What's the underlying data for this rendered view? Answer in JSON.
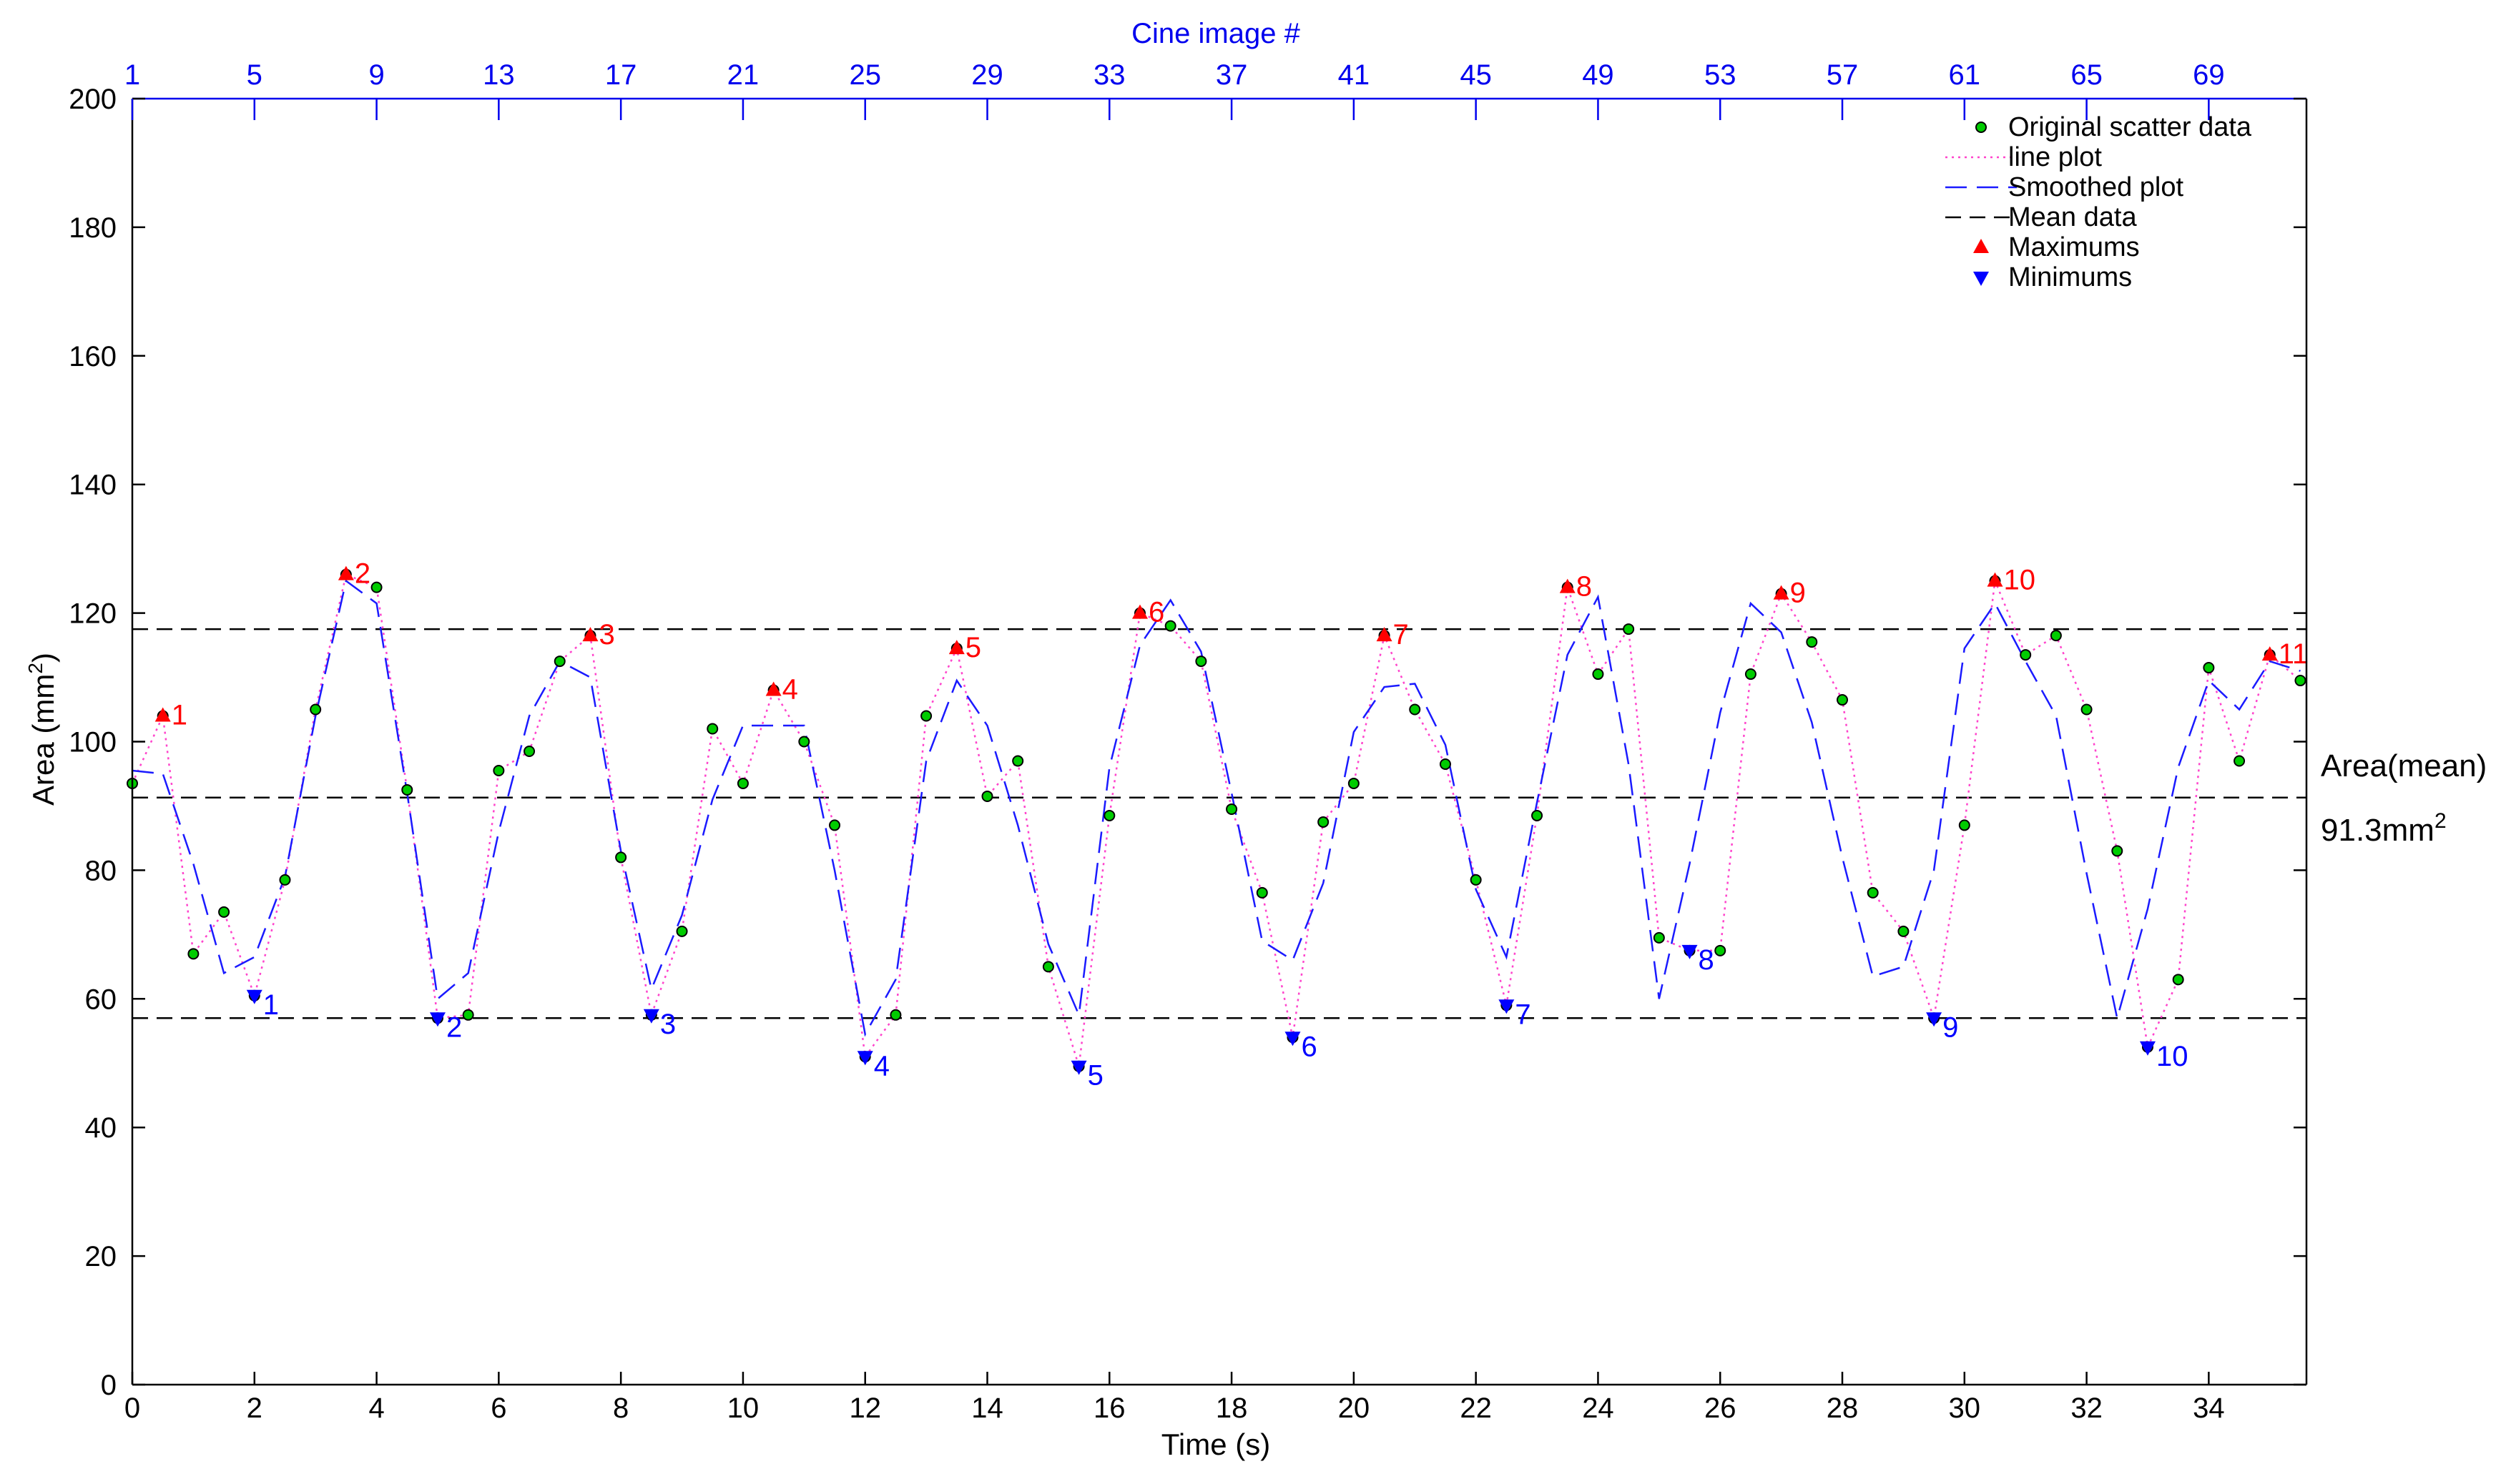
{
  "chart_data": {
    "type": "line",
    "top_axis_title": "Cine image #",
    "top_tick_labels": [
      "1",
      "5",
      "9",
      "13",
      "17",
      "21",
      "25",
      "29",
      "33",
      "37",
      "41",
      "45",
      "49",
      "53",
      "57",
      "61",
      "65",
      "69"
    ],
    "xlabel": "Time (s)",
    "ylabel_main": "Area (mm",
    "ylabel_sup": "2",
    "ylabel_close": ")",
    "xlim": [
      0,
      35.6
    ],
    "ylim": [
      0,
      200
    ],
    "xticks": [
      0,
      2,
      4,
      6,
      8,
      10,
      12,
      14,
      16,
      18,
      20,
      22,
      24,
      26,
      28,
      30,
      32,
      34
    ],
    "yticks": [
      0,
      20,
      40,
      60,
      80,
      100,
      120,
      140,
      160,
      180,
      200
    ],
    "series": [
      {
        "name": "Original scatter data",
        "values": [
          93.5,
          104,
          67,
          73.5,
          60.5,
          78.5,
          105,
          126,
          124,
          92.5,
          57,
          57.5,
          95.5,
          98.5,
          112.5,
          116.5,
          82,
          57.5,
          70.5,
          102,
          93.5,
          108,
          100,
          87,
          51,
          57.5,
          104,
          114.5,
          91.5,
          97,
          65,
          49.5,
          88.5,
          120,
          118,
          112.5,
          89.5,
          76.5,
          54,
          87.5,
          93.5,
          116.5,
          105,
          96.5,
          78.5,
          59,
          88.5,
          124,
          110.5,
          117.5,
          69.5,
          67.5,
          67.5,
          110.5,
          123,
          115.5,
          106.5,
          76.5,
          70.5,
          57,
          87,
          125,
          113.5,
          116.5,
          105,
          83,
          52.5,
          63,
          111.5,
          97,
          113.5,
          109.5
        ]
      },
      {
        "name": "line plot"
      },
      {
        "name": "Smoothed plot",
        "values": [
          95.5,
          95,
          81,
          64,
          66.5,
          79,
          104,
          125,
          121.5,
          92,
          60,
          64,
          86,
          104,
          112.5,
          110,
          83,
          61.5,
          73,
          91,
          102.5,
          102.5,
          102.5,
          80,
          54.5,
          63,
          97,
          109.5,
          102.5,
          87,
          68.5,
          57.5,
          96,
          115,
          122,
          114,
          92,
          69,
          66,
          78,
          101.5,
          108.5,
          109,
          99.5,
          77,
          66.5,
          90.5,
          113.5,
          122.5,
          96.5,
          60,
          81,
          104.5,
          121.5,
          117,
          103,
          82,
          63.5,
          65,
          80,
          114.5,
          121.5,
          112.5,
          104,
          79.5,
          57,
          74,
          96,
          109.5,
          105,
          112.5,
          111
        ]
      },
      {
        "name": "Mean data",
        "mean": 91.3,
        "upper": 117.5,
        "lower": 57
      }
    ],
    "time_step": 0.5,
    "maximums": [
      {
        "label": "1",
        "x": 0.5,
        "y": 104
      },
      {
        "label": "2",
        "x": 3.5,
        "y": 126
      },
      {
        "label": "3",
        "x": 7.5,
        "y": 116.5
      },
      {
        "label": "4",
        "x": 10.5,
        "y": 108
      },
      {
        "label": "5",
        "x": 13.5,
        "y": 114.5
      },
      {
        "label": "6",
        "x": 16.5,
        "y": 120
      },
      {
        "label": "7",
        "x": 20.5,
        "y": 116.5
      },
      {
        "label": "8",
        "x": 23.5,
        "y": 124
      },
      {
        "label": "9",
        "x": 27,
        "y": 123
      },
      {
        "label": "10",
        "x": 30.5,
        "y": 125
      },
      {
        "label": "11",
        "x": 35,
        "y": 113.5
      }
    ],
    "minimums": [
      {
        "label": "1",
        "x": 2,
        "y": 60.5
      },
      {
        "label": "2",
        "x": 5,
        "y": 57
      },
      {
        "label": "3",
        "x": 8.5,
        "y": 57.5
      },
      {
        "label": "4",
        "x": 12,
        "y": 51
      },
      {
        "label": "5",
        "x": 15.5,
        "y": 49.5
      },
      {
        "label": "6",
        "x": 19,
        "y": 54
      },
      {
        "label": "7",
        "x": 22.5,
        "y": 59
      },
      {
        "label": "8",
        "x": 25.5,
        "y": 67.5
      },
      {
        "label": "9",
        "x": 29.5,
        "y": 57
      },
      {
        "label": "10",
        "x": 33,
        "y": 52.5
      }
    ],
    "legend": [
      "Original scatter data",
      "line plot",
      "Smoothed plot",
      "Mean data",
      "Maximums",
      "Minimums"
    ],
    "legend_position": "top-right",
    "mean_annotation": {
      "line1": "Area(mean)",
      "line2_main": "91.3mm",
      "line2_sup": "2"
    },
    "colors": {
      "scatter_fill": "#00cc00",
      "line_plot": "#ff44cc",
      "smoothed": "#1a1aff",
      "mean_lines": "#000000",
      "maximums": "#ff0000",
      "minimums": "#0000ff",
      "top_axis": "#0000ee"
    }
  }
}
